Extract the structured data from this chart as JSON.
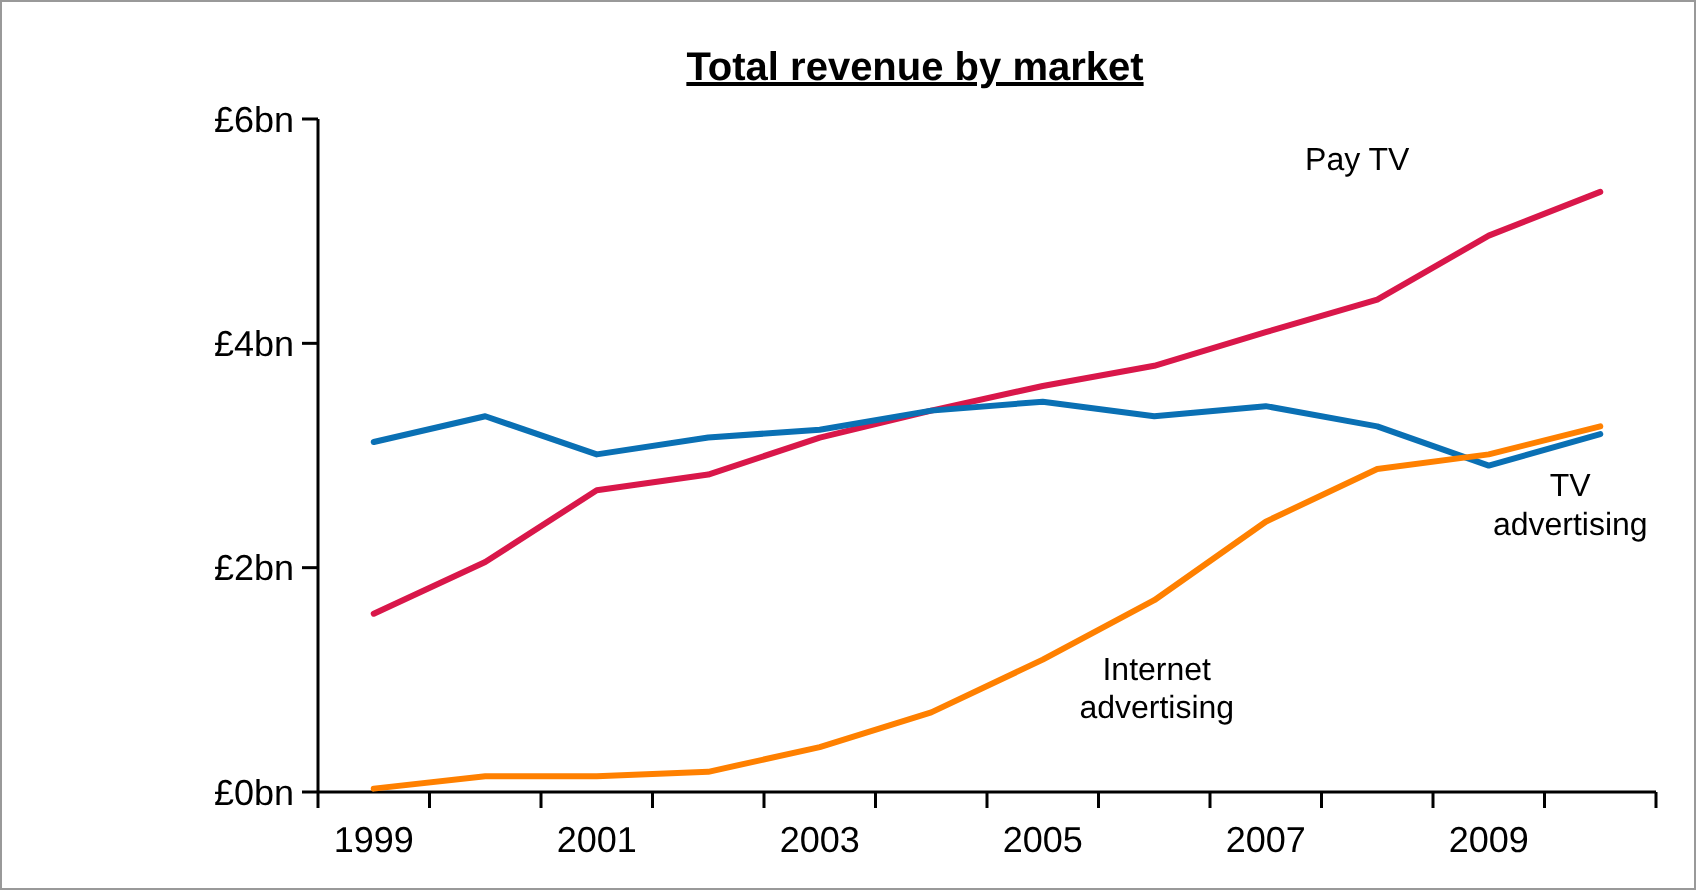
{
  "chart_data": {
    "type": "line",
    "title": "Total revenue by market",
    "categories": [
      "1999",
      null,
      "2001",
      null,
      "2003",
      null,
      "2005",
      null,
      "2007",
      null,
      "2009",
      null
    ],
    "series": [
      {
        "name": "Pay TV",
        "color": "#d9174a",
        "values": [
          1.59,
          2.05,
          2.69,
          2.83,
          3.16,
          3.4,
          3.62,
          3.8,
          4.1,
          4.39,
          4.96,
          5.35
        ]
      },
      {
        "name": "TV advertising",
        "color": "#0a70b4",
        "values": [
          3.12,
          3.35,
          3.01,
          3.16,
          3.23,
          3.4,
          3.48,
          3.35,
          3.44,
          3.26,
          2.91,
          3.19
        ]
      },
      {
        "name": "Internet advertising",
        "color": "#ff8000",
        "values": [
          0.03,
          0.14,
          0.14,
          0.18,
          0.4,
          0.71,
          1.18,
          1.71,
          2.41,
          2.88,
          3.01,
          3.26
        ]
      }
    ],
    "ylim": [
      0,
      6
    ],
    "yticks": [
      {
        "value": 0,
        "label": "£0bn"
      },
      {
        "value": 2,
        "label": "£2bn"
      },
      {
        "value": 4,
        "label": "£4bn"
      },
      {
        "value": 6,
        "label": "£6bn"
      }
    ],
    "grid": false,
    "marker": "none",
    "line_style": "solid"
  }
}
